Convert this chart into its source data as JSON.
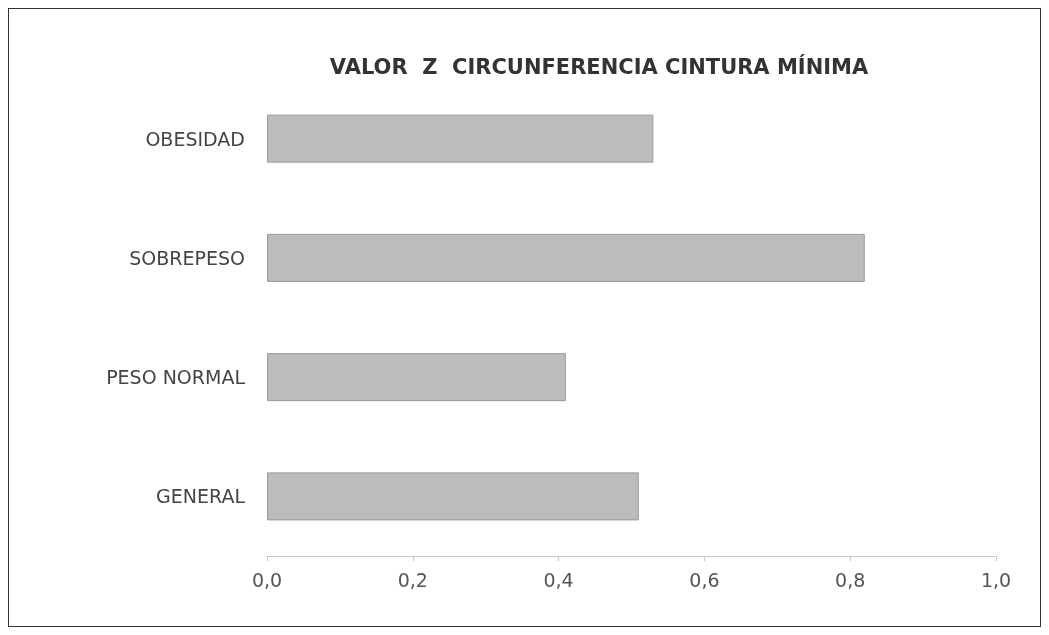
{
  "chart_data": {
    "type": "bar",
    "orientation": "horizontal",
    "title": "VALOR  Z  CIRCUNFERENCIA CINTURA MÍNIMA",
    "categories": [
      "OBESIDAD",
      "SOBREPESO",
      "PESO NORMAL",
      "GENERAL"
    ],
    "values": [
      0.53,
      0.82,
      0.41,
      0.51
    ],
    "color": "#bcbcbc",
    "xlim": [
      0,
      1
    ],
    "xticks": [
      {
        "value": 0,
        "label": "0,0"
      },
      {
        "value": 0.2,
        "label": "0,2"
      },
      {
        "value": 0.4,
        "label": "0,4"
      },
      {
        "value": 0.6,
        "label": "0,6"
      },
      {
        "value": 0.8,
        "label": "0,8"
      },
      {
        "value": 1,
        "label": "1,0"
      }
    ],
    "grid": false
  }
}
